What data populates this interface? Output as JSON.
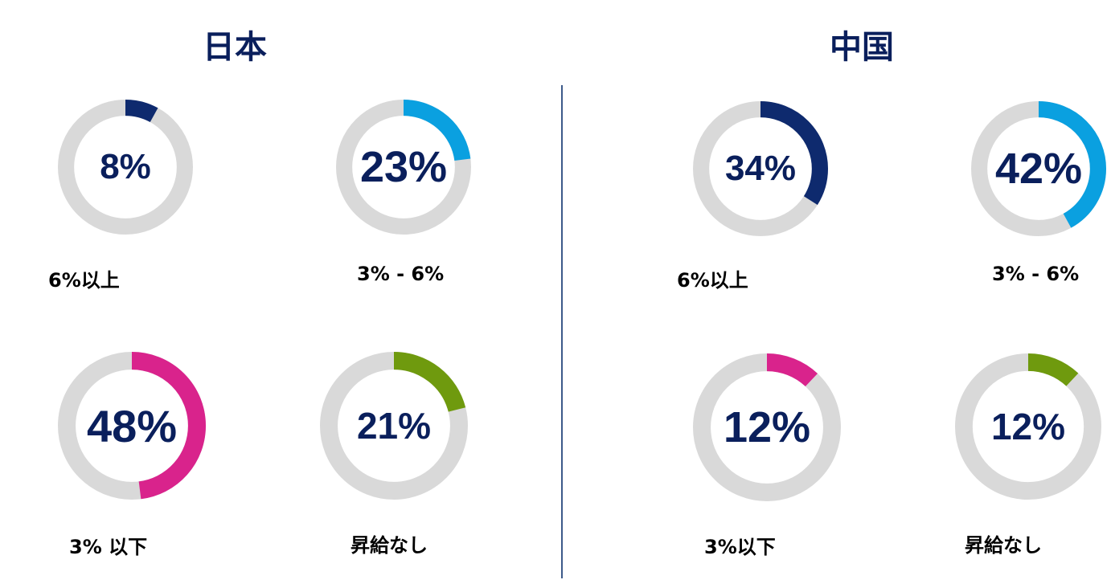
{
  "chart_data": [
    {
      "type": "donut",
      "title": "日本",
      "series": [
        {
          "label": "6%以上",
          "value": 8,
          "display": "8%",
          "color": "#0e2a6e"
        },
        {
          "label": "3% - 6%",
          "value": 23,
          "display": "23%",
          "color": "#0aa0e0"
        },
        {
          "label": "3% 以下",
          "value": 48,
          "display": "48%",
          "color": "#d9238c"
        },
        {
          "label": "昇給なし",
          "value": 21,
          "display": "21%",
          "color": "#6f9a0e"
        }
      ]
    },
    {
      "type": "donut",
      "title": "中国",
      "series": [
        {
          "label": "6%以上",
          "value": 34,
          "display": "34%",
          "color": "#0e2a6e"
        },
        {
          "label": "3% - 6%",
          "value": 42,
          "display": "42%",
          "color": "#0aa0e0"
        },
        {
          "label": "3%以下",
          "value": 12,
          "display": "12%",
          "color": "#d9238c"
        },
        {
          "label": "昇給なし",
          "value": 12,
          "display": "12%",
          "color": "#6f9a0e"
        }
      ]
    }
  ],
  "track_color": "#d9d9d9"
}
